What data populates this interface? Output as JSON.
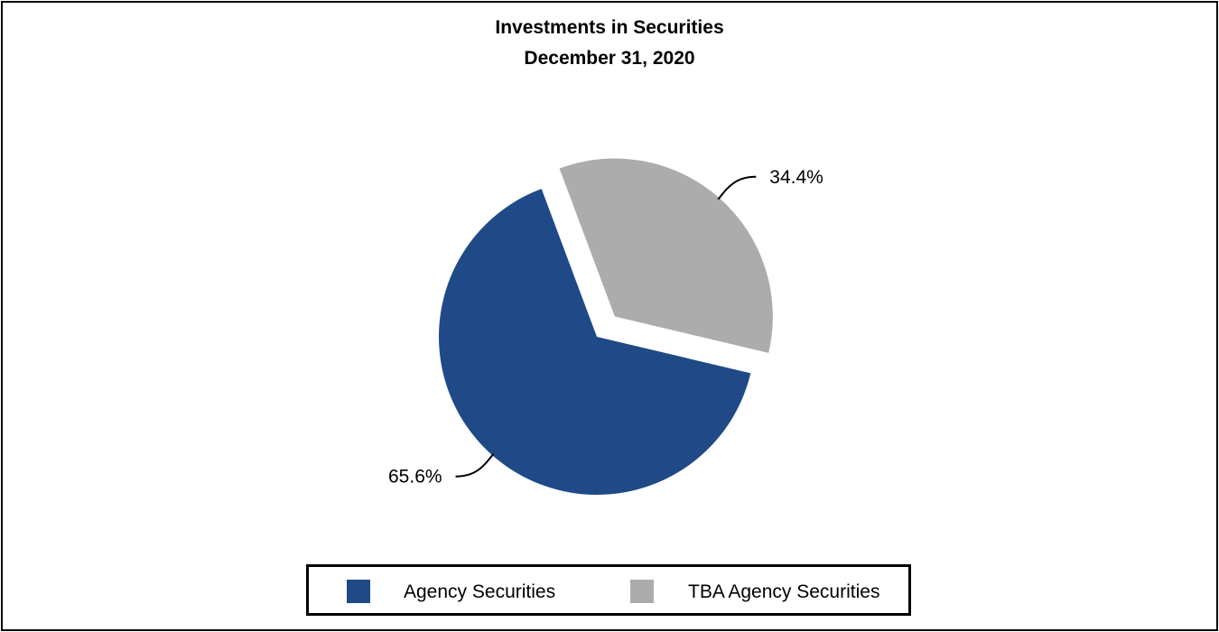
{
  "chart_data": {
    "type": "pie",
    "title": "Investments in Securities",
    "subtitle": "December 31, 2020",
    "slices": [
      {
        "name": "Agency Securities",
        "value": 65.6,
        "label": "65.6%",
        "color": "#1f4a87",
        "exploded": false
      },
      {
        "name": "TBA Agency Securities",
        "value": 34.4,
        "label": "34.4%",
        "color": "#acacac",
        "exploded": true
      }
    ],
    "legend_placement": "bottom"
  }
}
